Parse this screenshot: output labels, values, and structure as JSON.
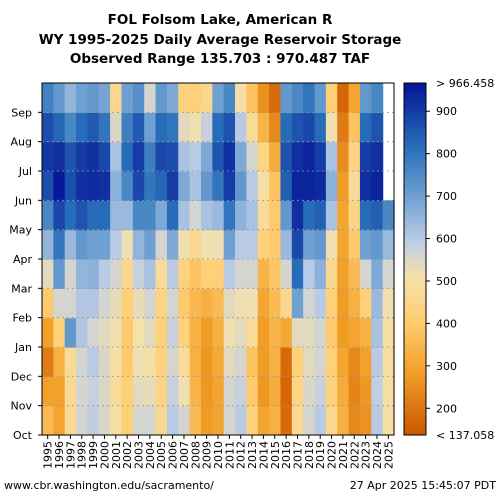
{
  "chart_data": {
    "type": "heatmap",
    "title_lines": [
      "FOL Folsom Lake, American R",
      "WY 1995-2025 Daily Average Reservoir Storage",
      "Observed Range 135.703 : 970.487 TAF"
    ],
    "x_categories": [
      "1995",
      "1996",
      "1997",
      "1998",
      "1999",
      "2000",
      "2001",
      "2002",
      "2003",
      "2004",
      "2005",
      "2006",
      "2007",
      "2008",
      "2009",
      "2010",
      "2011",
      "2012",
      "2013",
      "2014",
      "2015",
      "2016",
      "2017",
      "2018",
      "2019",
      "2020",
      "2021",
      "2022",
      "2023",
      "2024",
      "2025"
    ],
    "y_categories": [
      "Oct",
      "Nov",
      "Dec",
      "Jan",
      "Feb",
      "Mar",
      "Apr",
      "May",
      "Jun",
      "Jul",
      "Aug",
      "Sep"
    ],
    "colorbar": {
      "min": 137.058,
      "max": 966.458,
      "top_label": "> 966.458",
      "bottom_label": "< 137.058",
      "ticks": [
        200,
        300,
        400,
        500,
        600,
        700,
        800,
        900
      ],
      "units": "TAF"
    },
    "values": [
      [
        360,
        290,
        215,
        290,
        400,
        540,
        650,
        760,
        870,
        910,
        870,
        770
      ],
      [
        300,
        290,
        330,
        420,
        560,
        720,
        800,
        880,
        960,
        920,
        830,
        720
      ],
      [
        470,
        470,
        480,
        720,
        560,
        560,
        640,
        820,
        870,
        860,
        760,
        650
      ],
      [
        560,
        560,
        560,
        610,
        610,
        650,
        720,
        860,
        920,
        900,
        820,
        700
      ],
      [
        590,
        580,
        600,
        560,
        610,
        660,
        700,
        820,
        930,
        920,
        850,
        720
      ],
      [
        550,
        550,
        550,
        540,
        560,
        600,
        700,
        820,
        920,
        880,
        800,
        690
      ],
      [
        500,
        480,
        500,
        520,
        530,
        560,
        600,
        640,
        660,
        620,
        550,
        460
      ],
      [
        420,
        420,
        400,
        400,
        420,
        460,
        520,
        640,
        760,
        820,
        780,
        700
      ],
      [
        560,
        540,
        520,
        510,
        530,
        580,
        650,
        760,
        880,
        900,
        850,
        740
      ],
      [
        560,
        530,
        500,
        540,
        560,
        620,
        700,
        760,
        800,
        780,
        700,
        560
      ],
      [
        460,
        440,
        430,
        420,
        440,
        480,
        560,
        680,
        830,
        880,
        820,
        720
      ],
      [
        600,
        580,
        560,
        580,
        560,
        600,
        680,
        820,
        900,
        870,
        800,
        680
      ],
      [
        560,
        520,
        480,
        430,
        400,
        430,
        520,
        620,
        680,
        620,
        540,
        430
      ],
      [
        360,
        340,
        330,
        330,
        350,
        380,
        460,
        560,
        620,
        600,
        520,
        420
      ],
      [
        280,
        270,
        270,
        280,
        330,
        420,
        520,
        620,
        720,
        680,
        580,
        460
      ],
      [
        300,
        300,
        310,
        330,
        360,
        420,
        520,
        640,
        800,
        860,
        820,
        700
      ],
      [
        560,
        560,
        540,
        520,
        540,
        600,
        700,
        800,
        900,
        920,
        860,
        760
      ],
      [
        600,
        580,
        560,
        540,
        520,
        560,
        600,
        660,
        720,
        680,
        600,
        500
      ],
      [
        430,
        400,
        380,
        480,
        520,
        560,
        600,
        620,
        600,
        560,
        480,
        380
      ],
      [
        300,
        270,
        280,
        280,
        300,
        340,
        420,
        480,
        500,
        440,
        340,
        260
      ],
      [
        330,
        320,
        330,
        340,
        360,
        390,
        400,
        400,
        380,
        320,
        240,
        180
      ],
      [
        180,
        170,
        180,
        310,
        460,
        560,
        640,
        720,
        840,
        860,
        820,
        720
      ],
      [
        470,
        440,
        420,
        540,
        700,
        820,
        880,
        920,
        940,
        920,
        860,
        760
      ],
      [
        560,
        550,
        540,
        540,
        560,
        600,
        700,
        820,
        940,
        940,
        880,
        800
      ],
      [
        600,
        580,
        560,
        560,
        600,
        660,
        720,
        840,
        930,
        900,
        820,
        720
      ],
      [
        460,
        430,
        420,
        400,
        420,
        460,
        520,
        620,
        660,
        620,
        520,
        420
      ],
      [
        330,
        320,
        300,
        280,
        280,
        290,
        300,
        300,
        280,
        250,
        210,
        170
      ],
      [
        240,
        230,
        240,
        300,
        330,
        360,
        400,
        440,
        480,
        440,
        380,
        300
      ],
      [
        260,
        270,
        290,
        330,
        420,
        560,
        700,
        820,
        920,
        900,
        820,
        720
      ],
      [
        600,
        590,
        600,
        620,
        640,
        680,
        720,
        840,
        940,
        920,
        860,
        760
      ],
      [
        500,
        500,
        490,
        500,
        520,
        560,
        640,
        760
      ]
    ]
  },
  "footer": {
    "left": "www.cbr.washington.edu/sacramento/",
    "right": "27 Apr 2025 15:45:07 PDT"
  }
}
